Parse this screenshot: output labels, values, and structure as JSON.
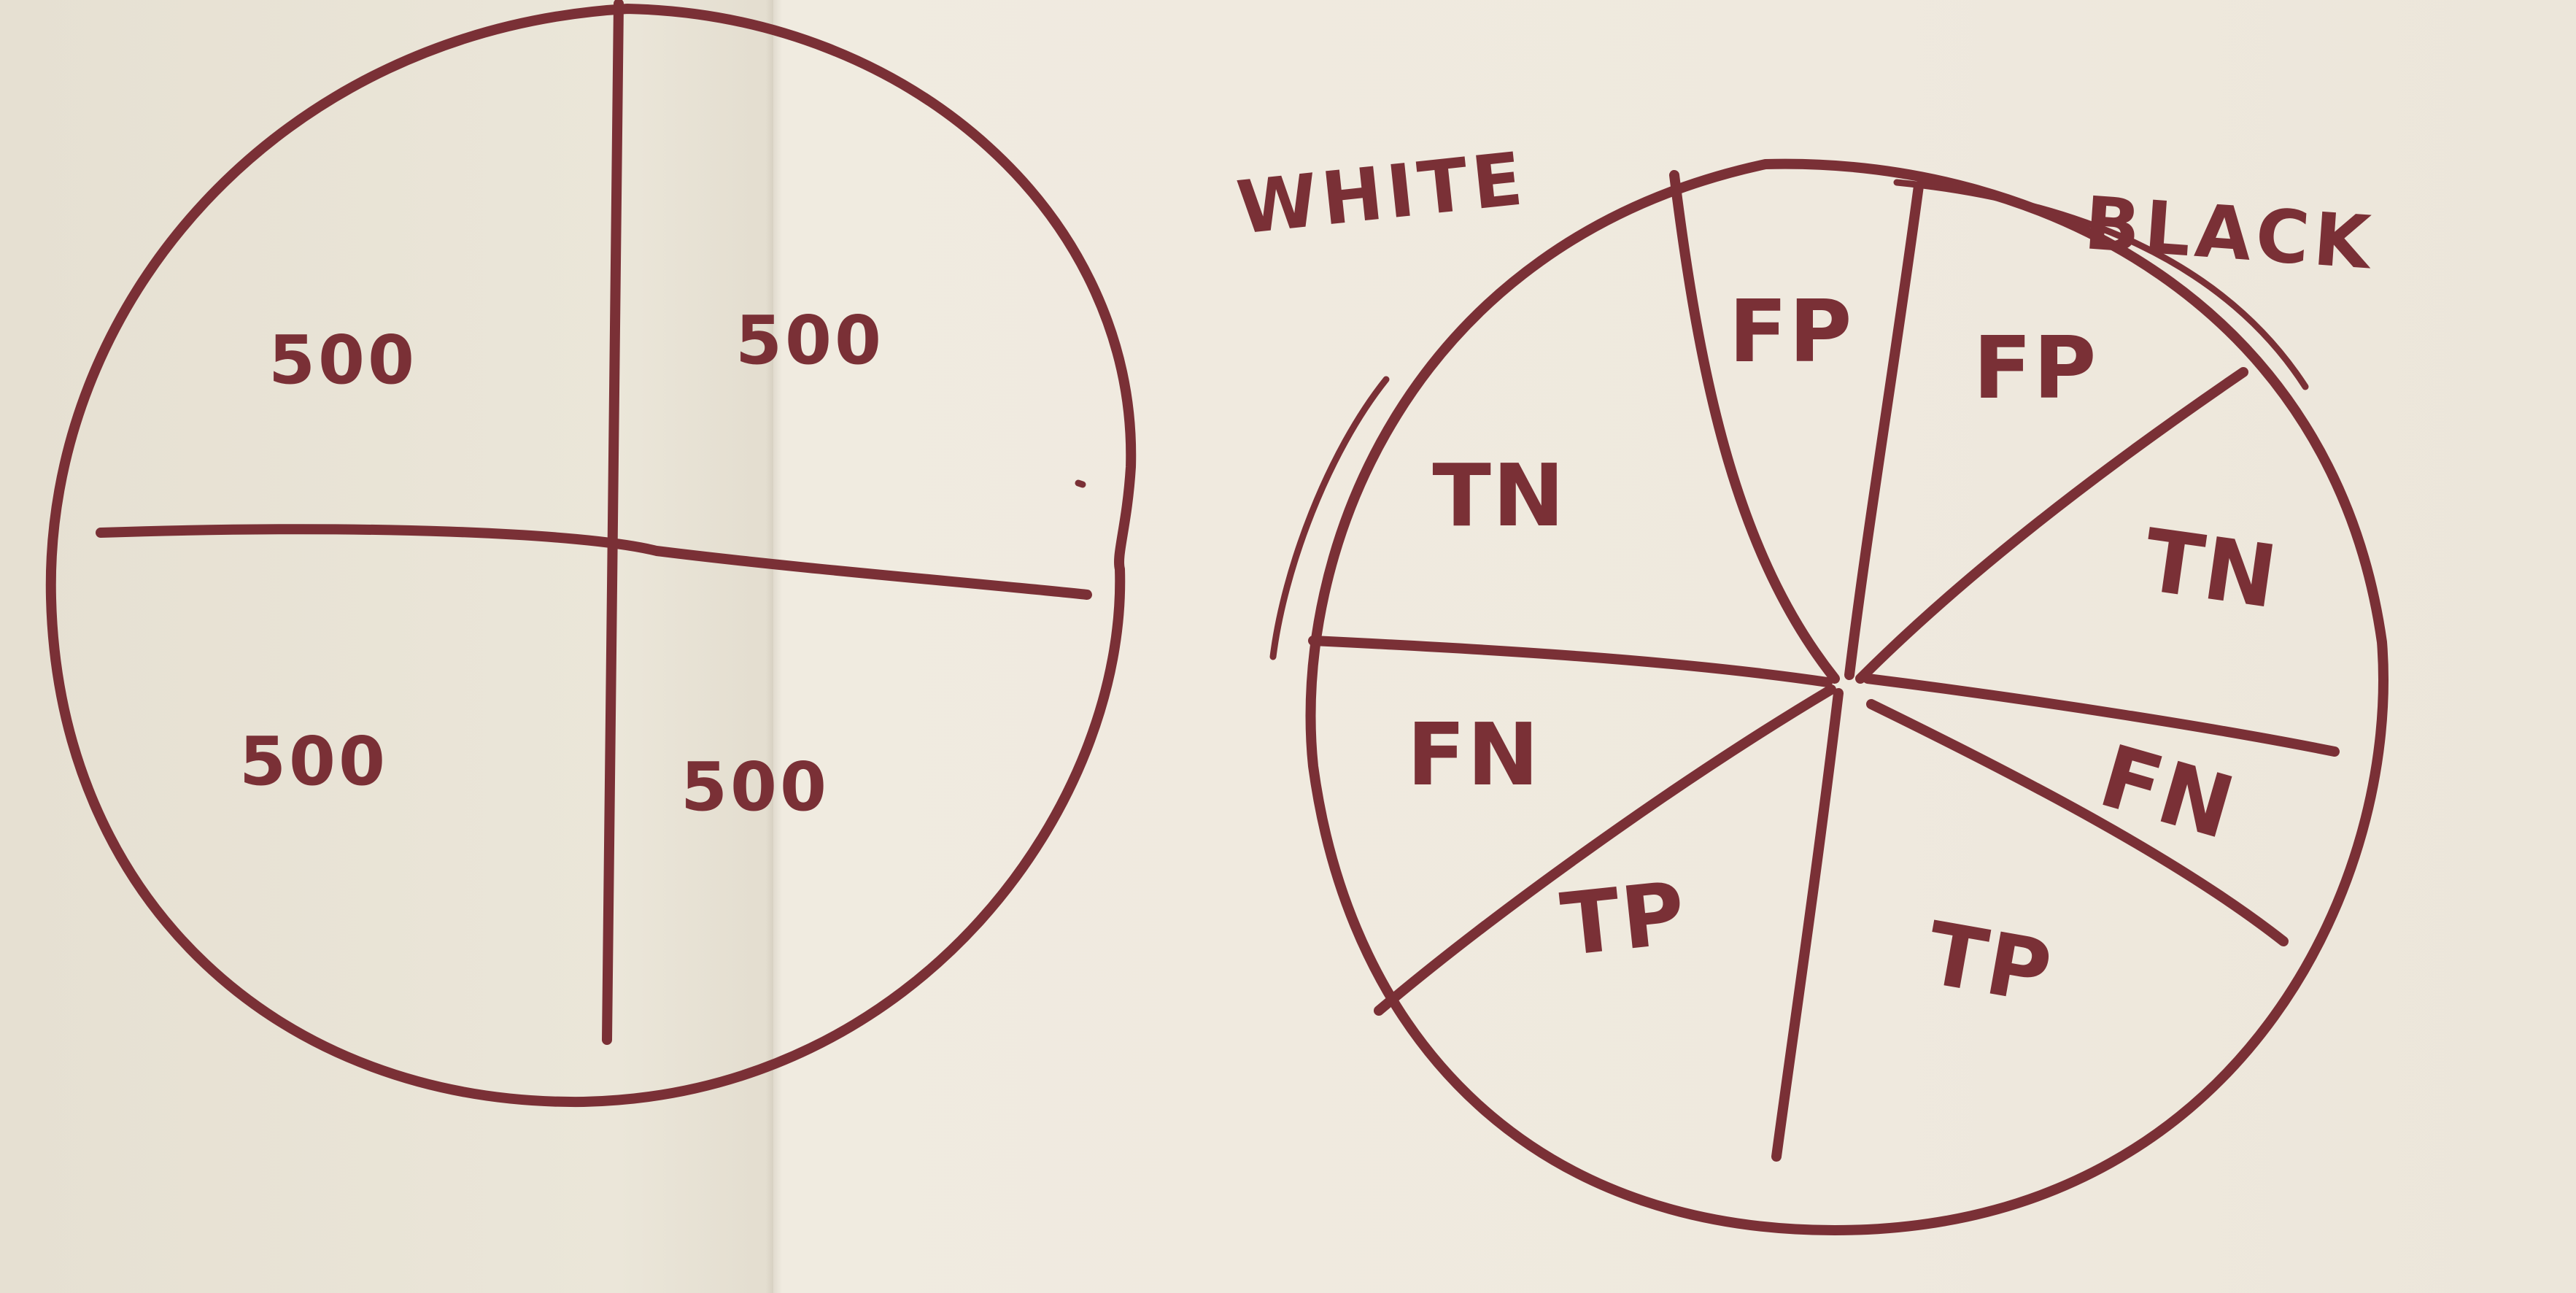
{
  "left_diagram": {
    "quadrants": [
      {
        "id": "top-left",
        "label": "500"
      },
      {
        "id": "top-right",
        "label": "500"
      },
      {
        "id": "bottom-left",
        "label": "500"
      },
      {
        "id": "bottom-right",
        "label": "500"
      }
    ]
  },
  "right_diagram": {
    "group_labels": {
      "white": "WHITE",
      "black": "BLACK"
    },
    "segments": [
      {
        "id": "white-tn",
        "label": "TN"
      },
      {
        "id": "white-fp",
        "label": "FP"
      },
      {
        "id": "black-fp",
        "label": "FP"
      },
      {
        "id": "black-tn",
        "label": "TN"
      },
      {
        "id": "black-fn",
        "label": "FN"
      },
      {
        "id": "black-tp",
        "label": "TP"
      },
      {
        "id": "white-tp",
        "label": "TP"
      },
      {
        "id": "white-fn",
        "label": "FN"
      }
    ]
  },
  "ink_color": "#7a3036"
}
